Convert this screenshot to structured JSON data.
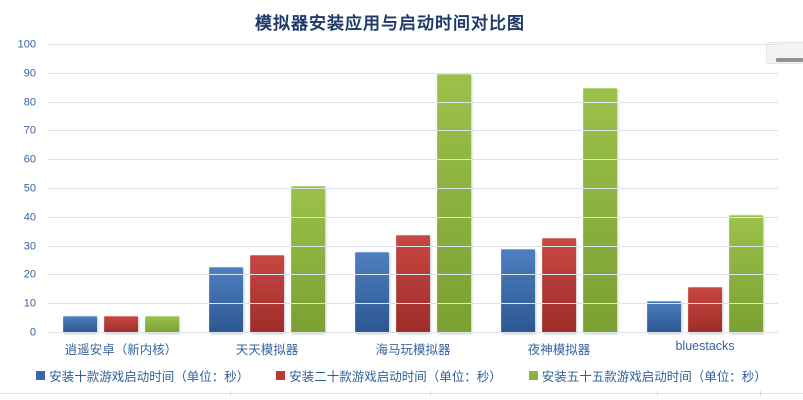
{
  "title": "模拟器安装应用与启动时间对比图",
  "chart_data": {
    "type": "bar",
    "title": "模拟器安装应用与启动时间对比图",
    "categories": [
      "逍遥安卓（新内核）",
      "天天模拟器",
      "海马玩模拟器",
      "夜神模拟器",
      "bluestacks"
    ],
    "series": [
      {
        "name": "安装十款游戏启动时间（单位：秒）",
        "color": "#3a68ae",
        "color_light": "#4e7fc0",
        "color_dark": "#2c5791",
        "values": [
          6,
          23,
          28,
          29,
          11
        ]
      },
      {
        "name": "安装二十款游戏启动时间（单位：秒）",
        "color": "#bb3834",
        "color_light": "#c94742",
        "color_dark": "#9c2d29",
        "values": [
          6,
          27,
          34,
          33,
          16
        ]
      },
      {
        "name": "安装五十五款游戏启动时间（单位：秒）",
        "color": "#8cb23c",
        "color_light": "#9cc14b",
        "color_dark": "#79a032",
        "values": [
          6,
          51,
          90,
          85,
          41
        ]
      }
    ],
    "ylim": [
      0,
      100
    ],
    "ytick_step": 10,
    "grid": true,
    "legend_position": "bottom"
  },
  "colors": {
    "title_text": "#1f3a68",
    "axis_text": "#37649f",
    "gridline": "#dde3eb",
    "background": "#ffffff"
  },
  "divider_tick_positions": [
    230,
    430,
    657,
    760
  ]
}
